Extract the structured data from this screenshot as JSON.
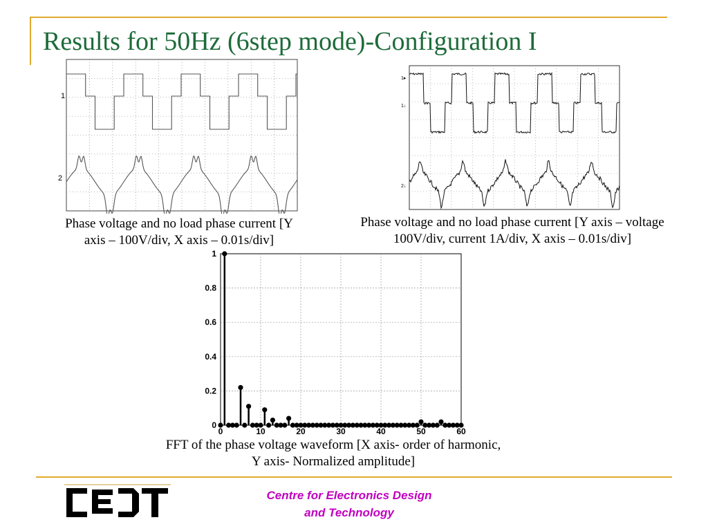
{
  "slide": {
    "title": "Results for 50Hz (6step mode)-Configuration I"
  },
  "scope_left": {
    "channel_labels": [
      "1",
      "2"
    ],
    "caption": "Phase voltage and no load phase current [Y axis – 100V/div, X axis – 0.01s/div]"
  },
  "scope_right": {
    "channel_markers": [
      "1▸",
      "1↓",
      "2↓"
    ],
    "caption": "Phase voltage and no load phase current [Y axis – voltage 100V/div, current 1A/div, X axis – 0.01s/div]"
  },
  "fft": {
    "caption": "FFT of the phase voltage waveform [X axis- order of harmonic, Y axis- Normalized amplitude]"
  },
  "chart_data": {
    "type": "scatter",
    "title": "",
    "xlabel": "",
    "ylabel": "",
    "xlim": [
      0,
      60
    ],
    "ylim": [
      0,
      1
    ],
    "xticks": [
      "0",
      "10",
      "20",
      "30",
      "40",
      "50",
      "60"
    ],
    "yticks": [
      "0",
      "0.2",
      "0.4",
      "0.6",
      "0.8",
      "1"
    ],
    "grid": true,
    "series": [
      {
        "x": [
          0,
          1,
          2,
          3,
          4,
          5,
          6,
          7,
          8,
          9,
          10,
          11,
          12,
          13,
          14,
          15,
          16,
          17,
          18,
          19,
          20,
          21,
          22,
          23,
          24,
          25,
          26,
          27,
          28,
          29,
          30,
          31,
          32,
          33,
          34,
          35,
          36,
          37,
          38,
          39,
          40,
          41,
          42,
          43,
          44,
          45,
          46,
          47,
          48,
          49,
          50,
          51,
          52,
          53,
          54,
          55,
          56,
          57,
          58,
          59,
          60
        ],
        "y": [
          0,
          1,
          0,
          0,
          0,
          0.22,
          0,
          0.11,
          0,
          0,
          0,
          0.09,
          0,
          0.03,
          0,
          0,
          0,
          0.04,
          0,
          0,
          0,
          0,
          0,
          0,
          0,
          0,
          0,
          0,
          0,
          0,
          0,
          0,
          0,
          0,
          0,
          0,
          0,
          0,
          0,
          0,
          0,
          0,
          0,
          0,
          0,
          0,
          0,
          0,
          0,
          0,
          0.02,
          0,
          0,
          0,
          0,
          0.02,
          0,
          0,
          0,
          0,
          0
        ]
      }
    ]
  },
  "footer": {
    "line1": "Centre for Electronics Design",
    "line2": "and Technology",
    "logo_text": "CEDT"
  }
}
